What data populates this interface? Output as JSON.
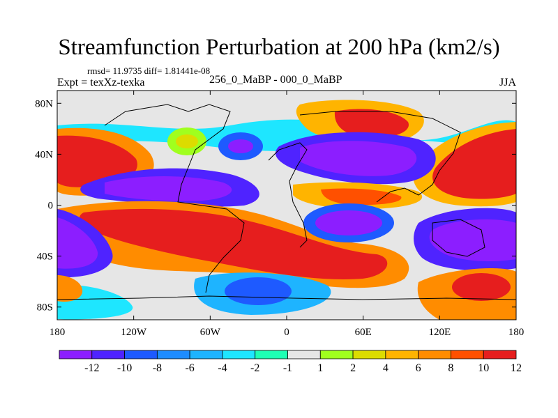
{
  "title": "Streamfunction Perturbation at 200 hPa (km2/s)",
  "stats": "rmsd= 11.9735 diff= 1.81441e-08",
  "experiment": "Expt = texXz-texka",
  "comparison": "256_0_MaBP - 000_0_MaBP",
  "season": "JJA",
  "map": {
    "lon_range": [
      -180,
      180
    ],
    "lat_range": [
      -90,
      90
    ],
    "lat_ticks": [
      {
        "value": 80,
        "label": "80N"
      },
      {
        "value": 40,
        "label": "40N"
      },
      {
        "value": 0,
        "label": "0"
      },
      {
        "value": -40,
        "label": "40S"
      },
      {
        "value": -80,
        "label": "80S"
      }
    ],
    "lon_ticks": [
      {
        "value": -180,
        "label": "180"
      },
      {
        "value": -120,
        "label": "120W"
      },
      {
        "value": -60,
        "label": "60W"
      },
      {
        "value": 0,
        "label": "0"
      },
      {
        "value": 60,
        "label": "60E"
      },
      {
        "value": 120,
        "label": "120E"
      },
      {
        "value": 180,
        "label": "180"
      }
    ],
    "features": [
      {
        "name": "positive-north-pacific-west",
        "lon": -180,
        "lat": 40,
        "value": 12
      },
      {
        "name": "positive-north-pacific-east",
        "lon": 180,
        "lat": 35,
        "value": 12
      },
      {
        "name": "negative-central-tropical",
        "lon": -110,
        "lat": 15,
        "value": -12
      },
      {
        "name": "negative-eurasia",
        "lon": 20,
        "lat": 42,
        "value": -12
      },
      {
        "name": "negative-north-atlantic",
        "lon": -30,
        "lat": 45,
        "value": -10
      },
      {
        "name": "positive-arctic-asia",
        "lon": 60,
        "lat": 65,
        "value": 10
      },
      {
        "name": "positive-south-pacific",
        "lon": -100,
        "lat": -30,
        "value": 12
      },
      {
        "name": "negative-south-pacific-west",
        "lon": -180,
        "lat": -30,
        "value": -12
      },
      {
        "name": "negative-indian-ocean",
        "lon": 50,
        "lat": -15,
        "value": -12
      },
      {
        "name": "negative-australia",
        "lon": 140,
        "lat": -30,
        "value": -12
      },
      {
        "name": "positive-southern-ocean-east",
        "lon": 160,
        "lat": -70,
        "value": 10
      },
      {
        "name": "negative-southern-ocean-atlantic",
        "lon": -30,
        "lat": -75,
        "value": -10
      }
    ]
  },
  "colorbar": {
    "colors": [
      "#8c1eff",
      "#4f23ff",
      "#1e5aff",
      "#1e8cff",
      "#1eb4ff",
      "#1ee6ff",
      "#1effb4",
      "#e6e6e6",
      "#a0ff1e",
      "#dcdc00",
      "#ffb400",
      "#ff8c00",
      "#ff5000",
      "#e61e1e"
    ],
    "labels": [
      "-12",
      "-10",
      "-8",
      "-6",
      "-4",
      "-2",
      "-1",
      "1",
      "2",
      "4",
      "6",
      "8",
      "10",
      "12"
    ]
  }
}
